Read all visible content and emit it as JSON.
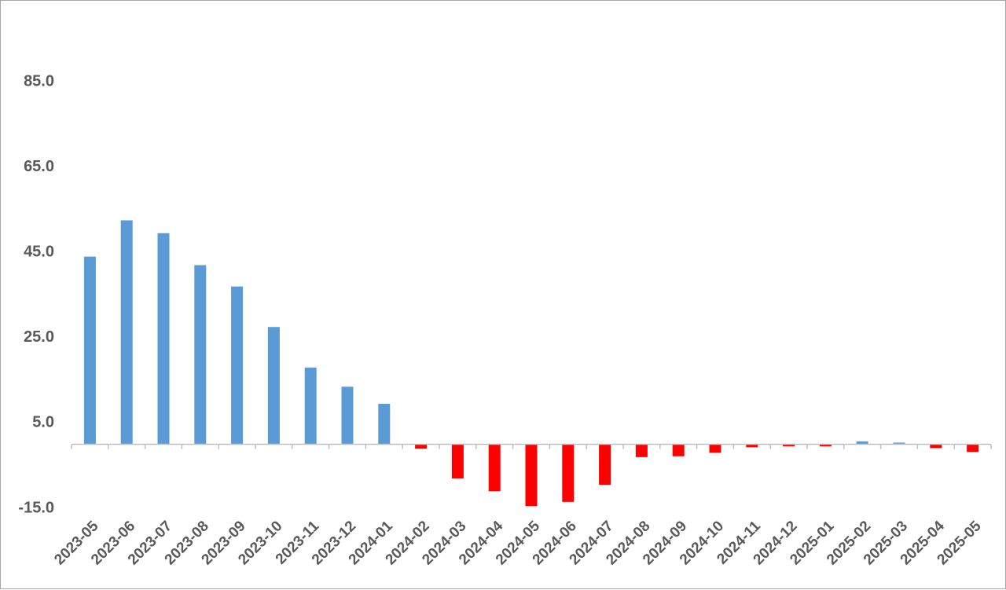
{
  "chart_data": {
    "type": "bar",
    "title": "",
    "xlabel": "",
    "ylabel": "",
    "categories": [
      "2023-05",
      "2023-06",
      "2023-07",
      "2023-08",
      "2023-09",
      "2023-10",
      "2023-11",
      "2023-12",
      "2024-01",
      "2024-02",
      "2024-03",
      "2024-04",
      "2024-05",
      "2024-06",
      "2024-07",
      "2024-08",
      "2024-09",
      "2024-10",
      "2024-11",
      "2024-12",
      "2025-01",
      "2025-02",
      "2025-03",
      "2025-04",
      "2025-05"
    ],
    "values": [
      44.0,
      52.5,
      49.5,
      42.0,
      37.0,
      27.5,
      18.0,
      13.5,
      9.5,
      -1.0,
      -8.0,
      -11.0,
      -14.5,
      -13.5,
      -9.5,
      -3.0,
      -2.8,
      -2.0,
      -0.7,
      -0.5,
      -0.5,
      0.7,
      0.4,
      -0.9,
      -1.8
    ],
    "ylim": [
      -15,
      85
    ],
    "yticks": [
      "85.0",
      "65.0",
      "45.0",
      "25.0",
      "5.0",
      "-15.0"
    ],
    "ytick_values": [
      85,
      65,
      45,
      25,
      5,
      -15
    ],
    "grid": false,
    "legend": "none",
    "colors": {
      "positive": "#5b9bd5",
      "negative": "#ff0000",
      "axis": "#bfbfbf",
      "text": "#595959"
    }
  }
}
